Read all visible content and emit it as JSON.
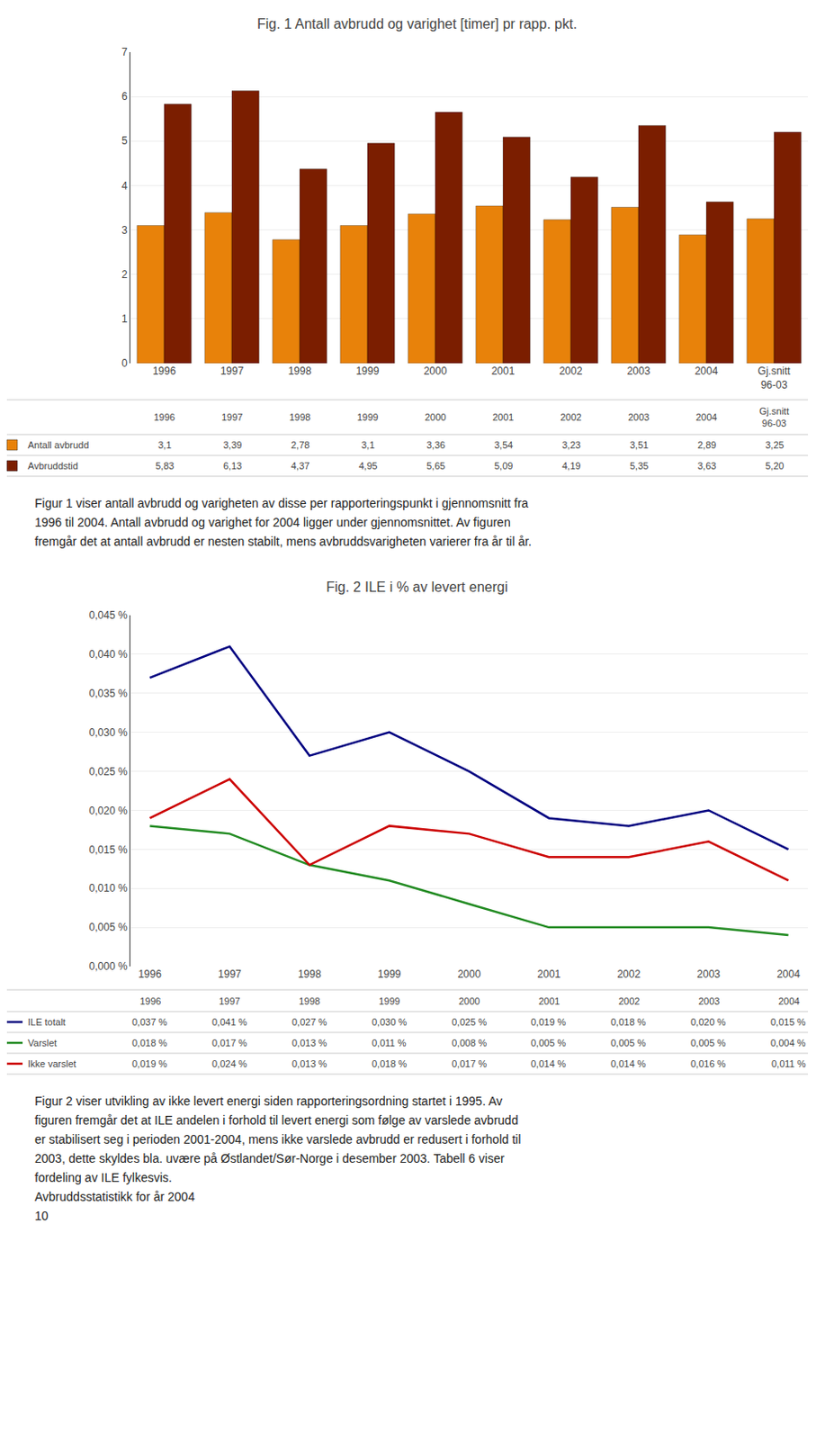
{
  "chart_data": [
    {
      "type": "bar",
      "title": "Fig. 1 Antall avbrudd og varighet [timer] pr rapp. pkt.",
      "categories": [
        "1996",
        "1997",
        "1998",
        "1999",
        "2000",
        "2001",
        "2002",
        "2003",
        "2004",
        "Gj.snitt\n96-03"
      ],
      "series": [
        {
          "name": "Antall avbrudd",
          "color": "#E8820A",
          "values": [
            3.1,
            3.39,
            2.78,
            3.1,
            3.36,
            3.54,
            3.23,
            3.51,
            2.89,
            3.25
          ],
          "value_labels": [
            "3,1",
            "3,39",
            "2,78",
            "3,1",
            "3,36",
            "3,54",
            "3,23",
            "3,51",
            "2,89",
            "3,25"
          ]
        },
        {
          "name": "Avbruddstid",
          "color": "#7B1E00",
          "values": [
            5.83,
            6.13,
            4.37,
            4.95,
            5.65,
            5.09,
            4.19,
            5.35,
            3.63,
            5.2
          ],
          "value_labels": [
            "5,83",
            "6,13",
            "4,37",
            "4,95",
            "5,65",
            "5,09",
            "4,19",
            "5,35",
            "3,63",
            "5,20"
          ]
        }
      ],
      "ylim": [
        0,
        7
      ],
      "yticks": [
        0,
        1,
        2,
        3,
        4,
        5,
        6,
        7
      ],
      "grid": true,
      "annotations": [
        "Figur 1 viser antall avbrudd og varigheten av disse per rapporteringspunkt i gjennomsnitt fra",
        "1996 til 2004. Antall avbrudd og varighet for 2004 ligger under gjennomsnittet. Av figuren",
        "fremgår det at antall avbrudd er nesten stabilt, mens avbruddsvarigheten varierer fra år til år."
      ]
    },
    {
      "type": "line",
      "title": "Fig. 2 ILE i % av levert energi",
      "categories": [
        "1996",
        "1997",
        "1998",
        "1999",
        "2000",
        "2001",
        "2002",
        "2003",
        "2004"
      ],
      "series": [
        {
          "name": "ILE totalt",
          "color": "#000080",
          "values": [
            0.037,
            0.041,
            0.027,
            0.03,
            0.025,
            0.019,
            0.018,
            0.02,
            0.015
          ],
          "value_labels": [
            "0,037 %",
            "0,041 %",
            "0,027 %",
            "0,030 %",
            "0,025 %",
            "0,019 %",
            "0,018 %",
            "0,020 %",
            "0,015 %"
          ]
        },
        {
          "name": "Varslet",
          "color": "#228B22",
          "values": [
            0.018,
            0.017,
            0.013,
            0.011,
            0.008,
            0.005,
            0.005,
            0.005,
            0.004
          ],
          "value_labels": [
            "0,018 %",
            "0,017 %",
            "0,013 %",
            "0,011 %",
            "0,008 %",
            "0,005 %",
            "0,005 %",
            "0,005 %",
            "0,004 %"
          ]
        },
        {
          "name": "Ikke varslet",
          "color": "#CC0000",
          "values": [
            0.019,
            0.024,
            0.013,
            0.018,
            0.017,
            0.014,
            0.014,
            0.016,
            0.011
          ],
          "value_labels": [
            "0,019 %",
            "0,024 %",
            "0,013 %",
            "0,018 %",
            "0,017 %",
            "0,014 %",
            "0,014 %",
            "0,016 %",
            "0,011 %"
          ]
        }
      ],
      "ylim": [
        0,
        0.045
      ],
      "yticks": [
        {
          "value": 0,
          "label": "0,000 %"
        },
        {
          "value": 0.005,
          "label": "0,005 %"
        },
        {
          "value": 0.01,
          "label": "0,010 %"
        },
        {
          "value": 0.015,
          "label": "0,015 %"
        },
        {
          "value": 0.02,
          "label": "0,020 %"
        },
        {
          "value": 0.025,
          "label": "0,025 %"
        },
        {
          "value": 0.03,
          "label": "0,030 %"
        },
        {
          "value": 0.035,
          "label": "0,035 %"
        },
        {
          "value": 0.04,
          "label": "0,040 %"
        },
        {
          "value": 0.045,
          "label": "0,045 %"
        }
      ],
      "grid": true,
      "annotations": [
        "Figur 2 viser utvikling av ikke levert energi siden rapporteringsordning startet i 1995. Av",
        "figuren fremgår det at ILE andelen i forhold til levert energi som følge av varslede avbrudd",
        "er stabilisert seg i perioden 2001-2004, mens ikke varslede avbrudd er redusert i forhold til",
        "2003, dette skyldes bla. uvære på Østlandet/Sør-Norge i desember 2003. Tabell 6 viser",
        "fordeling av ILE fylkesvis.",
        "Avbruddsstatistikk for år 2004",
        "10"
      ]
    }
  ]
}
